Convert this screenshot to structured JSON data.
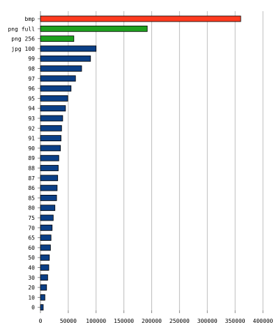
{
  "chart_data": {
    "type": "bar",
    "orientation": "horizontal",
    "title": "",
    "xlabel": "",
    "ylabel": "",
    "xlim": [
      0,
      400000
    ],
    "xticks": [
      0,
      50000,
      100000,
      150000,
      200000,
      250000,
      300000,
      350000,
      400000
    ],
    "xtick_labels": [
      "0",
      "50000",
      "100000",
      "150000",
      "200000",
      "250000",
      "300000",
      "350000",
      "400000"
    ],
    "grid": true,
    "legend": "none",
    "categories": [
      "bmp",
      "png full",
      "png 256",
      "jpg 100",
      "99",
      "98",
      "97",
      "96",
      "95",
      "94",
      "93",
      "92",
      "91",
      "90",
      "89",
      "88",
      "87",
      "86",
      "85",
      "80",
      "75",
      "70",
      "65",
      "60",
      "50",
      "40",
      "30",
      "20",
      "10",
      "0"
    ],
    "values": [
      360000,
      192000,
      60000,
      100000,
      90000,
      74000,
      63000,
      55000,
      49000,
      45000,
      40000,
      38000,
      37000,
      36000,
      33000,
      32000,
      31000,
      30000,
      29000,
      26000,
      23000,
      21000,
      19000,
      18000,
      16000,
      15000,
      13000,
      11000,
      8000,
      5000
    ],
    "colors": [
      "#ff3b1f",
      "#1ea01e",
      "#1ea01e",
      "#0b3f86",
      "#0b3f86",
      "#0b3f86",
      "#0b3f86",
      "#0b3f86",
      "#0b3f86",
      "#0b3f86",
      "#0b3f86",
      "#0b3f86",
      "#0b3f86",
      "#0b3f86",
      "#0b3f86",
      "#0b3f86",
      "#0b3f86",
      "#0b3f86",
      "#0b3f86",
      "#0b3f86",
      "#0b3f86",
      "#0b3f86",
      "#0b3f86",
      "#0b3f86",
      "#0b3f86",
      "#0b3f86",
      "#0b3f86",
      "#0b3f86",
      "#0b3f86",
      "#0b3f86"
    ]
  }
}
